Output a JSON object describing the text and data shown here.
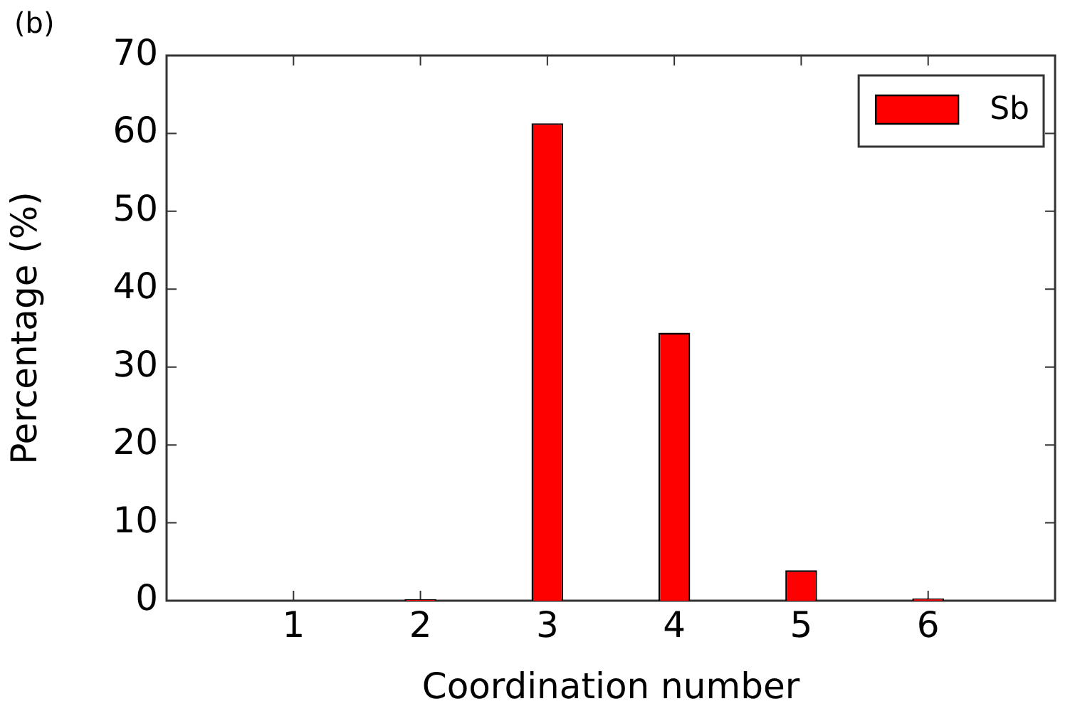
{
  "chart_data": {
    "type": "bar",
    "x": [
      1,
      2,
      3,
      4,
      5,
      6
    ],
    "series": [
      {
        "name": "Sb",
        "color": "#ff0000",
        "values": [
          0,
          0.2,
          61.3,
          34.4,
          3.9,
          0.3
        ]
      }
    ],
    "xlabel": "Coordination number",
    "ylabel": "Percentage (%)",
    "xlim": [
      0,
      7
    ],
    "xticks": [
      1,
      2,
      3,
      4,
      5,
      6
    ],
    "ylim": [
      0,
      70
    ],
    "yticks": [
      0,
      10,
      20,
      30,
      40,
      50,
      60,
      70
    ],
    "legend": "top right",
    "grid": false,
    "annotations": [
      "(b)"
    ]
  }
}
